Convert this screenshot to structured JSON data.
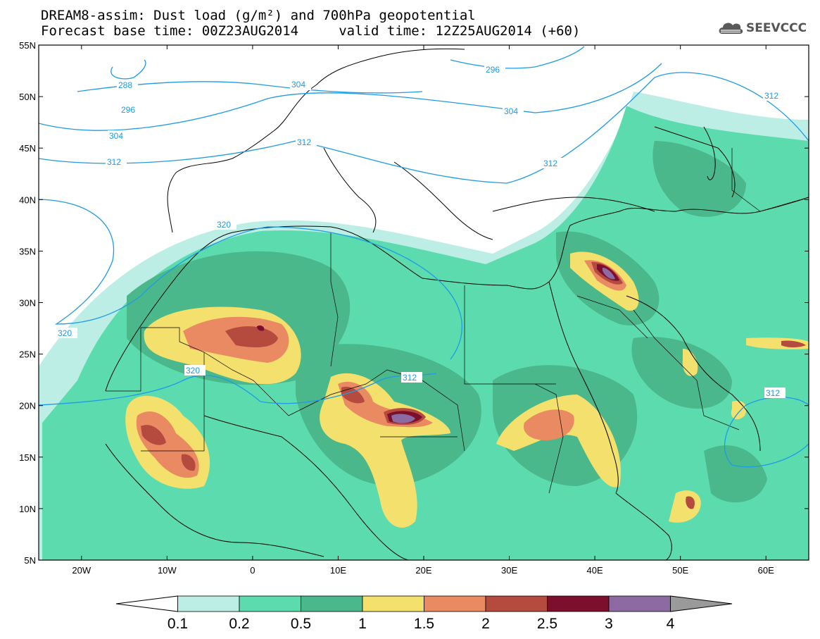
{
  "title": {
    "line1": "DREAM8-assim: Dust load (g/m²) and 700hPa geopotential",
    "line2": "Forecast base time: 00Z23AUG2014     valid time: 12Z25AUG2014 (+60)"
  },
  "logo": {
    "text": "SEEVCCC",
    "icon": "cloud-icon"
  },
  "map": {
    "lon_range": [
      -25,
      65
    ],
    "lat_range": [
      5,
      55
    ],
    "lat_ticks": [
      "55N",
      "50N",
      "45N",
      "40N",
      "35N",
      "30N",
      "25N",
      "20N",
      "15N",
      "10N",
      "5N"
    ],
    "lon_ticks": [
      "20W",
      "10W",
      "0",
      "10E",
      "20E",
      "30E",
      "40E",
      "50E",
      "60E"
    ],
    "contour_labels": [
      "288",
      "296",
      "304",
      "304",
      "312",
      "312",
      "312",
      "320",
      "320",
      "320",
      "296",
      "304",
      "312",
      "312",
      "312"
    ]
  },
  "colorbar": {
    "labels": [
      "0.1",
      "0.2",
      "0.5",
      "1",
      "1.5",
      "2",
      "2.5",
      "3",
      "4"
    ],
    "colors": [
      "#ffffff",
      "#bdeee6",
      "#5cdcae",
      "#4bb88c",
      "#f4e06c",
      "#ea8a62",
      "#b54a3e",
      "#7c0f2c",
      "#8d6aa2",
      "#9a9a9a"
    ]
  }
}
